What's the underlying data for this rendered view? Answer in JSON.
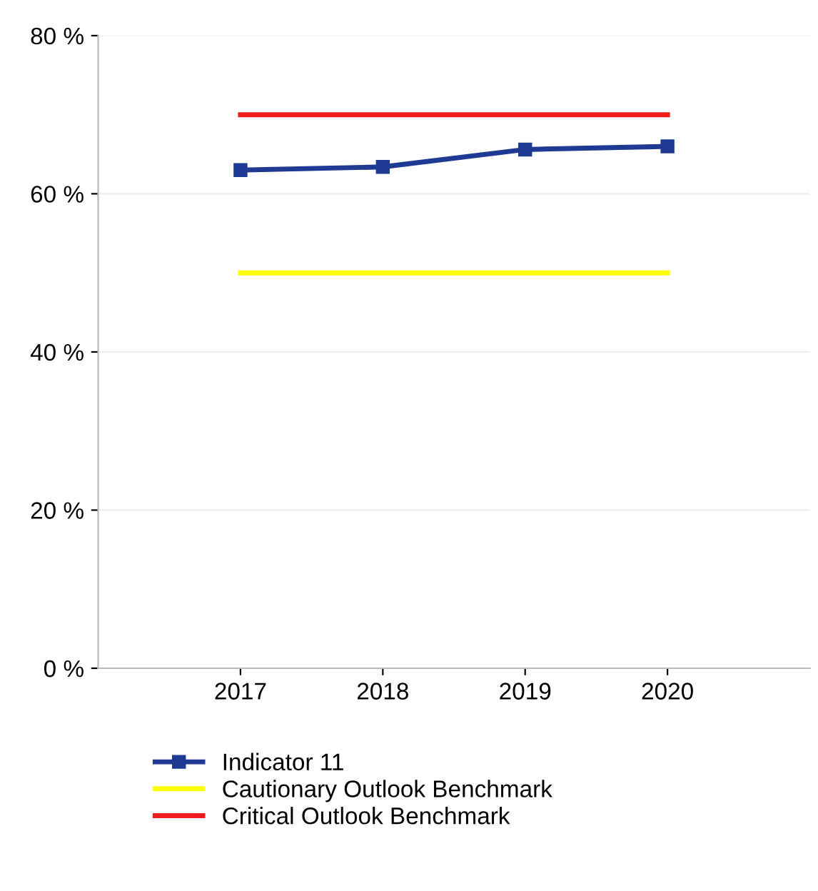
{
  "chart_data": {
    "type": "line",
    "categories": [
      "2017",
      "2018",
      "2019",
      "2020"
    ],
    "series": [
      {
        "name": "Indicator 11",
        "color": "#1f3a93",
        "values": [
          63,
          63.4,
          65.6,
          66
        ],
        "marker": "square"
      },
      {
        "name": "Cautionary Outlook Benchmark",
        "color": "#ffff00",
        "values": [
          50,
          50,
          50,
          50
        ],
        "marker": "none"
      },
      {
        "name": "Critical Outlook Benchmark",
        "color": "#ee1c1c",
        "values": [
          70,
          70,
          70,
          70
        ],
        "marker": "none"
      }
    ],
    "ylim": [
      0,
      80
    ],
    "yticks": [
      {
        "value": 0,
        "label": "0 %"
      },
      {
        "value": 20,
        "label": "20 %"
      },
      {
        "value": 40,
        "label": "40 %"
      },
      {
        "value": 60,
        "label": "60 %"
      },
      {
        "value": 80,
        "label": "80 %"
      }
    ],
    "grid": "y",
    "legend": "bottom"
  }
}
